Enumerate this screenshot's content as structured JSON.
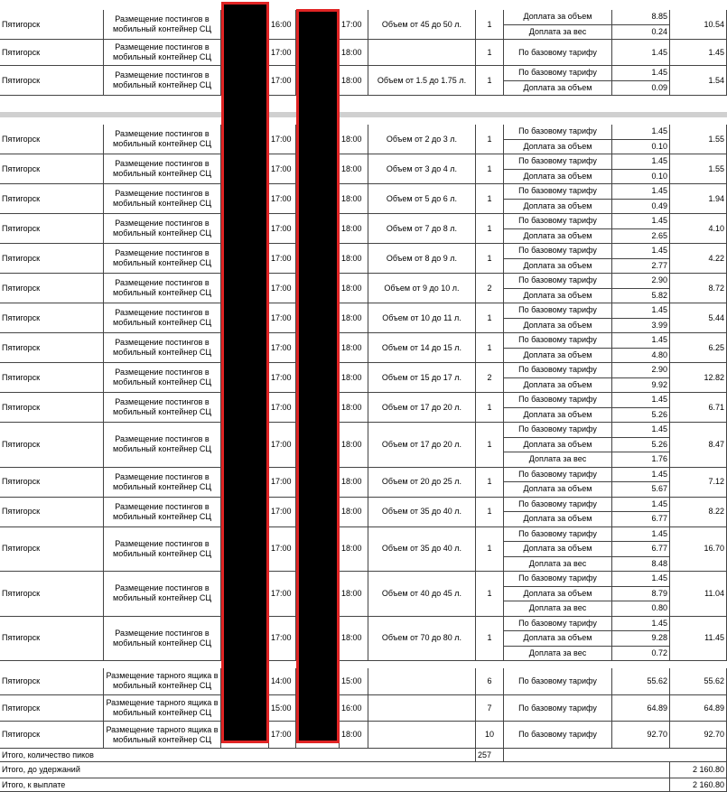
{
  "groups": [
    {
      "rows": [
        {
          "city": "Пятигорск",
          "service": "Размещение постингов в мобильный контейнер СЦ",
          "start": "16:00",
          "end": "17:00",
          "volume": "Объем от 45 до 50 л.",
          "count": "1",
          "lines": [
            {
              "label": "Доплата за объем",
              "amount": "8.85"
            },
            {
              "label": "Доплата за вес",
              "amount": "0.24"
            }
          ],
          "total": "10.54"
        },
        {
          "city": "Пятигорск",
          "service": "Размещение постингов в мобильный контейнер СЦ",
          "start": "17:00",
          "end": "18:00",
          "count": "1",
          "lines": [
            {
              "label": "По базовому тарифу",
              "amount": "1.45"
            }
          ],
          "total": "1.45"
        },
        {
          "city": "Пятигорск",
          "service": "Размещение постингов в мобильный контейнер СЦ",
          "start": "17:00",
          "end": "18:00",
          "volume": "Объем от 1.5 до 1.75 л.",
          "count": "1",
          "lines": [
            {
              "label": "По базовому тарифу",
              "amount": "1.45"
            },
            {
              "label": "Доплата за объем",
              "amount": "0.09"
            }
          ],
          "total": "1.54"
        }
      ]
    },
    {
      "rows": [
        {
          "city": "Пятигорск",
          "service": "Размещение постингов в мобильный контейнер СЦ",
          "start": "17:00",
          "end": "18:00",
          "volume": "Объем от 2 до 3 л.",
          "count": "1",
          "lines": [
            {
              "label": "По базовому тарифу",
              "amount": "1.45"
            },
            {
              "label": "Доплата за объем",
              "amount": "0.10"
            }
          ],
          "total": "1.55"
        },
        {
          "city": "Пятигорск",
          "service": "Размещение постингов в мобильный контейнер СЦ",
          "start": "17:00",
          "end": "18:00",
          "volume": "Объем от 3 до 4 л.",
          "count": "1",
          "lines": [
            {
              "label": "По базовому тарифу",
              "amount": "1.45"
            },
            {
              "label": "Доплата за объем",
              "amount": "0.10"
            }
          ],
          "total": "1.55"
        },
        {
          "city": "Пятигорск",
          "service": "Размещение постингов в мобильный контейнер СЦ",
          "start": "17:00",
          "end": "18:00",
          "volume": "Объем от 5 до 6 л.",
          "count": "1",
          "lines": [
            {
              "label": "По базовому тарифу",
              "amount": "1.45"
            },
            {
              "label": "Доплата за объем",
              "amount": "0.49"
            }
          ],
          "total": "1.94"
        },
        {
          "city": "Пятигорск",
          "service": "Размещение постингов в мобильный контейнер СЦ",
          "start": "17:00",
          "end": "18:00",
          "volume": "Объем от 7 до 8 л.",
          "count": "1",
          "lines": [
            {
              "label": "По базовому тарифу",
              "amount": "1.45"
            },
            {
              "label": "Доплата за объем",
              "amount": "2.65"
            }
          ],
          "total": "4.10"
        },
        {
          "city": "Пятигорск",
          "service": "Размещение постингов в мобильный контейнер СЦ",
          "start": "17:00",
          "end": "18:00",
          "volume": "Объем от 8 до 9 л.",
          "count": "1",
          "lines": [
            {
              "label": "По базовому тарифу",
              "amount": "1.45"
            },
            {
              "label": "Доплата за объем",
              "amount": "2.77"
            }
          ],
          "total": "4.22"
        },
        {
          "city": "Пятигорск",
          "service": "Размещение постингов в мобильный контейнер СЦ",
          "start": "17:00",
          "end": "18:00",
          "volume": "Объем от 9 до 10 л.",
          "count": "2",
          "lines": [
            {
              "label": "По базовому тарифу",
              "amount": "2.90"
            },
            {
              "label": "Доплата за объем",
              "amount": "5.82"
            }
          ],
          "total": "8.72"
        },
        {
          "city": "Пятигорск",
          "service": "Размещение постингов в мобильный контейнер СЦ",
          "start": "17:00",
          "end": "18:00",
          "volume": "Объем от 10 до 11 л.",
          "count": "1",
          "lines": [
            {
              "label": "По базовому тарифу",
              "amount": "1.45"
            },
            {
              "label": "Доплата за объем",
              "amount": "3.99"
            }
          ],
          "total": "5.44"
        },
        {
          "city": "Пятигорск",
          "service": "Размещение постингов в мобильный контейнер СЦ",
          "start": "17:00",
          "end": "18:00",
          "volume": "Объем от 14 до 15 л.",
          "count": "1",
          "lines": [
            {
              "label": "По базовому тарифу",
              "amount": "1.45"
            },
            {
              "label": "Доплата за объем",
              "amount": "4.80"
            }
          ],
          "total": "6.25"
        },
        {
          "city": "Пятигорск",
          "service": "Размещение постингов в мобильный контейнер СЦ",
          "start": "17:00",
          "end": "18:00",
          "volume": "Объем от 15 до 17 л.",
          "count": "2",
          "lines": [
            {
              "label": "По базовому тарифу",
              "amount": "2.90"
            },
            {
              "label": "Доплата за объем",
              "amount": "9.92"
            }
          ],
          "total": "12.82"
        },
        {
          "city": "Пятигорск",
          "service": "Размещение постингов в мобильный контейнер СЦ",
          "start": "17:00",
          "end": "18:00",
          "volume": "Объем от 17 до 20 л.",
          "count": "1",
          "lines": [
            {
              "label": "По базовому тарифу",
              "amount": "1.45"
            },
            {
              "label": "Доплата за объем",
              "amount": "5.26"
            }
          ],
          "total": "6.71"
        },
        {
          "city": "Пятигорск",
          "service": "Размещение постингов в мобильный контейнер СЦ",
          "start": "17:00",
          "end": "18:00",
          "volume": "Объем от 17 до 20 л.",
          "count": "1",
          "lines": [
            {
              "label": "По базовому тарифу",
              "amount": "1.45"
            },
            {
              "label": "Доплата за объем",
              "amount": "5.26"
            },
            {
              "label": "Доплата за вес",
              "amount": "1.76"
            }
          ],
          "total": "8.47"
        },
        {
          "city": "Пятигорск",
          "service": "Размещение постингов в мобильный контейнер СЦ",
          "start": "17:00",
          "end": "18:00",
          "volume": "Объем от 20 до 25 л.",
          "count": "1",
          "lines": [
            {
              "label": "По базовому тарифу",
              "amount": "1.45"
            },
            {
              "label": "Доплата за объем",
              "amount": "5.67"
            }
          ],
          "total": "7.12"
        },
        {
          "city": "Пятигорск",
          "service": "Размещение постингов в мобильный контейнер СЦ",
          "start": "17:00",
          "end": "18:00",
          "volume": "Объем от 35 до 40 л.",
          "count": "1",
          "lines": [
            {
              "label": "По базовому тарифу",
              "amount": "1.45"
            },
            {
              "label": "Доплата за объем",
              "amount": "6.77"
            }
          ],
          "total": "8.22"
        },
        {
          "city": "Пятигорск",
          "service": "Размещение постингов в мобильный контейнер СЦ",
          "start": "17:00",
          "end": "18:00",
          "volume": "Объем от 35 до 40 л.",
          "count": "1",
          "lines": [
            {
              "label": "По базовому тарифу",
              "amount": "1.45"
            },
            {
              "label": "Доплата за объем",
              "amount": "6.77"
            },
            {
              "label": "Доплата за вес",
              "amount": "8.48"
            }
          ],
          "total": "16.70"
        },
        {
          "city": "Пятигорск",
          "service": "Размещение постингов в мобильный контейнер СЦ",
          "start": "17:00",
          "end": "18:00",
          "volume": "Объем от 40 до 45 л.",
          "count": "1",
          "lines": [
            {
              "label": "По базовому тарифу",
              "amount": "1.45"
            },
            {
              "label": "Доплата за объем",
              "amount": "8.79"
            },
            {
              "label": "Доплата за вес",
              "amount": "0.80"
            }
          ],
          "total": "11.04"
        },
        {
          "city": "Пятигорск",
          "service": "Размещение постингов в мобильный контейнер СЦ",
          "start": "17:00",
          "end": "18:00",
          "volume": "Объем от 70 до 80 л.",
          "count": "1",
          "lines": [
            {
              "label": "По базовому тарифу",
              "amount": "1.45"
            },
            {
              "label": "Доплата за объем",
              "amount": "9.28"
            },
            {
              "label": "Доплата за вес",
              "amount": "0.72"
            }
          ],
          "total": "11.45"
        }
      ]
    },
    {
      "rows": [
        {
          "city": "Пятигорск",
          "service": "Размещение тарного ящика в мобильный контейнер СЦ",
          "start": "14:00",
          "end": "15:00",
          "count": "6",
          "lines": [
            {
              "label": "По базовому тарифу",
              "amount": "55.62"
            }
          ],
          "total": "55.62"
        },
        {
          "city": "Пятигорск",
          "service": "Размещение тарного ящика в мобильный контейнер СЦ",
          "start": "15:00",
          "end": "16:00",
          "count": "7",
          "lines": [
            {
              "label": "По базовому тарифу",
              "amount": "64.89"
            }
          ],
          "total": "64.89"
        },
        {
          "city": "Пятигорск",
          "service": "Размещение тарного ящика в мобильный контейнер СЦ",
          "start": "17:00",
          "end": "18:00",
          "count": "10",
          "lines": [
            {
              "label": "По базовому тарифу",
              "amount": "92.70"
            }
          ],
          "total": "92.70"
        }
      ]
    }
  ],
  "summary": [
    {
      "label": "Итого, количество пиков",
      "count": "257"
    },
    {
      "label": "Итого, до удержаний",
      "total": "2 160.80"
    },
    {
      "label": "Итого, к выплате",
      "total": "2 160.80"
    }
  ]
}
